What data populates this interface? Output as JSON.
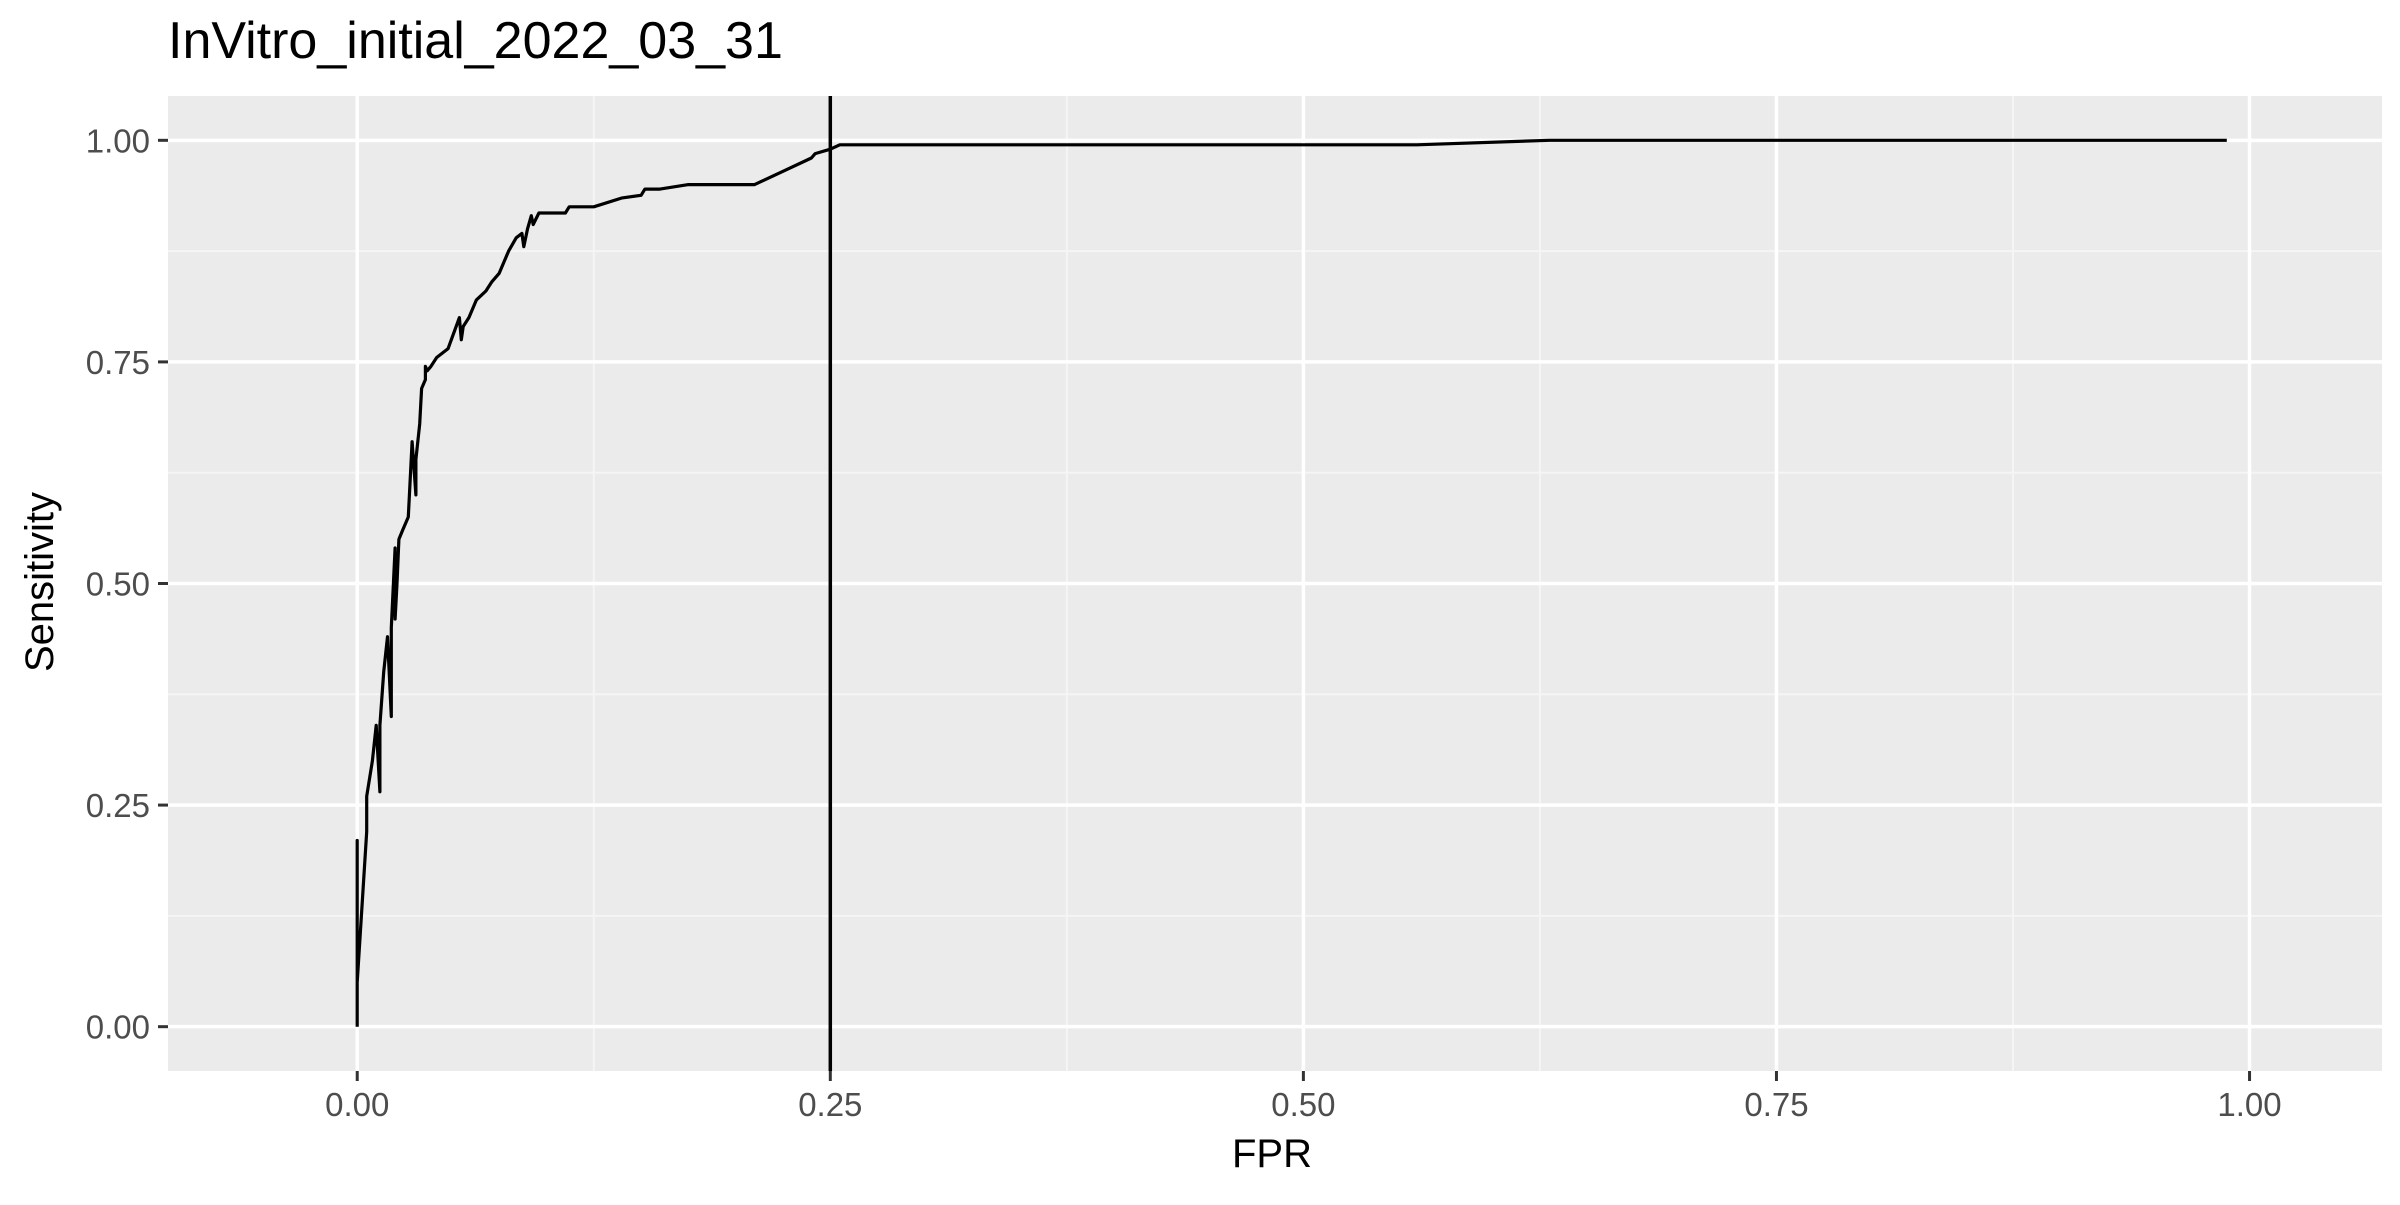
{
  "chart_data": {
    "type": "line",
    "title": "InVitro_initial_2022_03_31",
    "xlabel": "FPR",
    "ylabel": "Sensitivity",
    "xlim": [
      -0.1,
      1.07
    ],
    "ylim": [
      -0.05,
      1.05
    ],
    "x_ticks": [
      0,
      0.25,
      0.5,
      0.75,
      1
    ],
    "x_tick_labels": [
      "0.00",
      "0.25",
      "0.50",
      "0.75",
      "1.00"
    ],
    "y_ticks": [
      0,
      0.25,
      0.5,
      0.75,
      1
    ],
    "y_tick_labels": [
      "0.00",
      "0.25",
      "0.50",
      "0.75",
      "1.00"
    ],
    "grid": true,
    "vline_x": 0.25,
    "series": [
      {
        "x": [
          0.0,
          0.0,
          0.0,
          0.005,
          0.005,
          0.008,
          0.01,
          0.012,
          0.012,
          0.014,
          0.016,
          0.018,
          0.018,
          0.02,
          0.02,
          0.021,
          0.022,
          0.024,
          0.027,
          0.029,
          0.031,
          0.031,
          0.033,
          0.034,
          0.036,
          0.036,
          0.037,
          0.039,
          0.042,
          0.048,
          0.054,
          0.055,
          0.056,
          0.059,
          0.063,
          0.068,
          0.071,
          0.075,
          0.078,
          0.08,
          0.084,
          0.087,
          0.088,
          0.09,
          0.092,
          0.093,
          0.096,
          0.098,
          0.103,
          0.11,
          0.112,
          0.118,
          0.125,
          0.14,
          0.15,
          0.152,
          0.16,
          0.175,
          0.19,
          0.21,
          0.225,
          0.24,
          0.242,
          0.25,
          0.255,
          0.3,
          0.4,
          0.5,
          0.56,
          0.63,
          0.75,
          0.9,
          0.988
        ],
        "y": [
          0.0,
          0.21,
          0.05,
          0.22,
          0.26,
          0.3,
          0.34,
          0.265,
          0.34,
          0.4,
          0.44,
          0.35,
          0.45,
          0.54,
          0.46,
          0.5,
          0.55,
          0.56,
          0.575,
          0.66,
          0.6,
          0.64,
          0.68,
          0.72,
          0.73,
          0.745,
          0.74,
          0.745,
          0.755,
          0.765,
          0.8,
          0.775,
          0.79,
          0.8,
          0.82,
          0.83,
          0.84,
          0.85,
          0.865,
          0.875,
          0.89,
          0.895,
          0.88,
          0.9,
          0.915,
          0.905,
          0.918,
          0.918,
          0.918,
          0.918,
          0.925,
          0.925,
          0.925,
          0.935,
          0.938,
          0.945,
          0.945,
          0.95,
          0.95,
          0.95,
          0.965,
          0.98,
          0.985,
          0.99,
          0.995,
          0.995,
          0.995,
          0.995,
          0.995,
          1.0,
          1.0,
          1.0,
          1.0
        ]
      }
    ],
    "colors": {
      "panel_background": "#ebebeb",
      "grid_major": "#ffffff",
      "grid_minor": "#f5f5f5",
      "line": "#000000",
      "tick_label": "#4d4d4d",
      "tick_mark": "#333333"
    }
  }
}
